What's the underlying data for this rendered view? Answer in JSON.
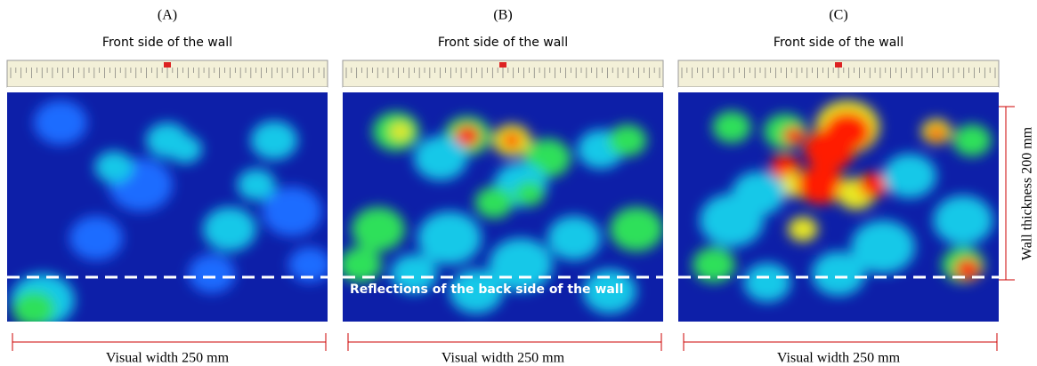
{
  "panels": [
    {
      "label": "(A)",
      "title": "Front side of the wall",
      "width_label": "Visual width 250 mm"
    },
    {
      "label": "(B)",
      "title": "Front side of the wall",
      "width_label": "Visual width 250 mm",
      "annotation": "Reflections of the back side of the wall"
    },
    {
      "label": "(C)",
      "title": "Front side of the wall",
      "width_label": "Visual width 250 mm"
    }
  ],
  "thickness_label": "Wall thickness  200 mm"
}
